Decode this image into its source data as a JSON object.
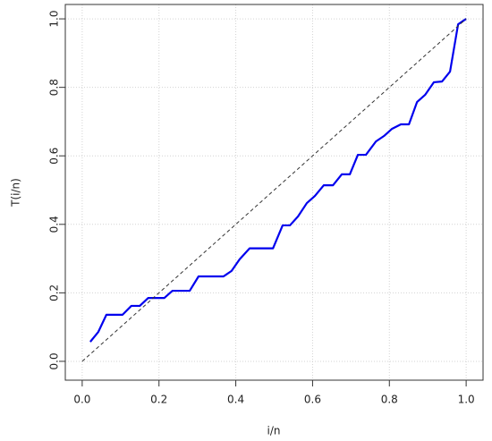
{
  "chart_data": {
    "type": "line",
    "xlabel": "i/n",
    "ylabel": "T(i/n)",
    "xlim": [
      -0.044,
      1.044
    ],
    "ylim": [
      -0.055,
      1.042
    ],
    "xticks": [
      {
        "value": 0,
        "label": "0.0"
      },
      0.2,
      0.4,
      0.6,
      0.8,
      {
        "value": 1,
        "label": "1.0"
      }
    ],
    "yticks": [
      {
        "value": 0,
        "label": "0.0"
      },
      0.2,
      0.4,
      0.6,
      0.8,
      {
        "value": 1,
        "label": "1.0"
      }
    ],
    "grid": true,
    "series": [
      {
        "color": "#0000ee",
        "width": 2.2,
        "dash": "none",
        "x": [
          0.021,
          0.042,
          0.063,
          0.105,
          0.128,
          0.15,
          0.172,
          0.214,
          0.235,
          0.28,
          0.303,
          0.368,
          0.389,
          0.41,
          0.436,
          0.497,
          0.522,
          0.541,
          0.562,
          0.585,
          0.606,
          0.629,
          0.653,
          0.676,
          0.697,
          0.718,
          0.739,
          0.765,
          0.786,
          0.807,
          0.83,
          0.851,
          0.872,
          0.893,
          0.916,
          0.937,
          0.958,
          0.979,
          1.0
        ],
        "values": [
          0.057,
          0.086,
          0.136,
          0.136,
          0.162,
          0.162,
          0.185,
          0.185,
          0.206,
          0.206,
          0.248,
          0.248,
          0.264,
          0.298,
          0.33,
          0.33,
          0.397,
          0.397,
          0.423,
          0.462,
          0.483,
          0.514,
          0.514,
          0.546,
          0.546,
          0.603,
          0.603,
          0.642,
          0.658,
          0.679,
          0.692,
          0.692,
          0.757,
          0.778,
          0.815,
          0.817,
          0.846,
          0.984,
          1.0
        ]
      },
      {
        "color": "#333333",
        "width": 1,
        "dash": "4 3",
        "x": [
          0,
          1
        ],
        "values": [
          0,
          1
        ]
      }
    ]
  }
}
